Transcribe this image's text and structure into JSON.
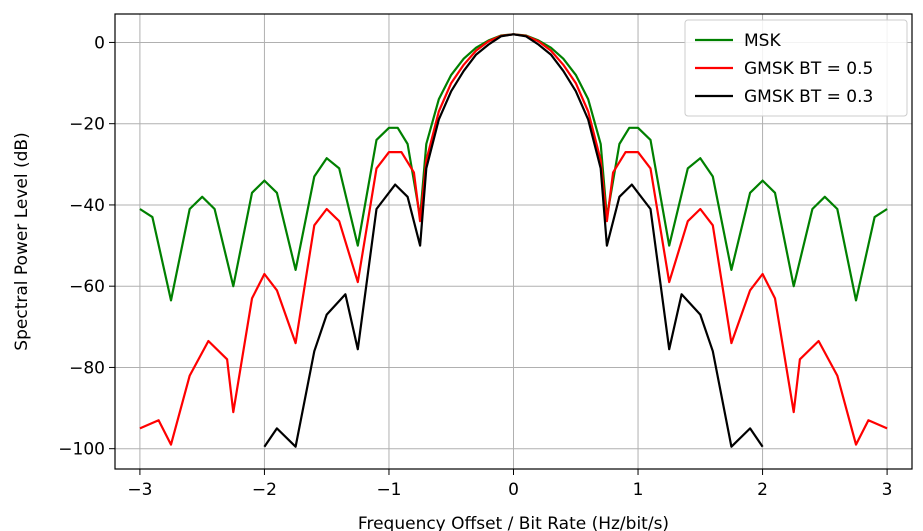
{
  "chart_data": {
    "type": "line",
    "title": "",
    "xlabel": "Frequency Offset / Bit Rate (Hz/bit/s)",
    "ylabel": "Spectral Power Level (dB)",
    "xlim": [
      -3.2,
      3.2
    ],
    "ylim": [
      -105,
      7
    ],
    "xticks": [
      -3,
      -2,
      -1,
      0,
      1,
      2,
      3
    ],
    "xtick_labels": [
      "−3",
      "−2",
      "−1",
      "0",
      "1",
      "2",
      "3"
    ],
    "yticks": [
      0,
      -20,
      -40,
      -60,
      -80,
      -100
    ],
    "ytick_labels": [
      "0",
      "−20",
      "−40",
      "−60",
      "−80",
      "−100"
    ],
    "grid": true,
    "legend_position": "top-right",
    "series": [
      {
        "name": "MSK",
        "color": "#008000",
        "x": [
          -3.0,
          -2.9,
          -2.75,
          -2.6,
          -2.5,
          -2.4,
          -2.25,
          -2.1,
          -2.0,
          -1.9,
          -1.75,
          -1.6,
          -1.5,
          -1.4,
          -1.25,
          -1.1,
          -1.0,
          -0.93,
          -0.85,
          -0.75,
          -0.7,
          -0.6,
          -0.5,
          -0.4,
          -0.3,
          -0.2,
          -0.1,
          0.0,
          0.1,
          0.2,
          0.3,
          0.4,
          0.5,
          0.6,
          0.7,
          0.75,
          0.85,
          0.93,
          1.0,
          1.1,
          1.25,
          1.4,
          1.5,
          1.6,
          1.75,
          1.9,
          2.0,
          2.1,
          2.25,
          2.4,
          2.5,
          2.6,
          2.75,
          2.9,
          3.0
        ],
        "y": [
          -41,
          -43,
          -63.5,
          -41,
          -38,
          -41,
          -60,
          -37,
          -34,
          -37,
          -56,
          -33,
          -28.5,
          -31,
          -50,
          -24,
          -21,
          -21,
          -25,
          -43,
          -25,
          -14,
          -8,
          -4,
          -1.3,
          0.5,
          1.7,
          2,
          1.7,
          0.5,
          -1.3,
          -4,
          -8,
          -14,
          -25,
          -43,
          -25,
          -21,
          -21,
          -24,
          -50,
          -31,
          -28.5,
          -33,
          -56,
          -37,
          -34,
          -37,
          -60,
          -41,
          -38,
          -41,
          -63.5,
          -43,
          -41
        ]
      },
      {
        "name": "GMSK BT = 0.5",
        "color": "#ff0000",
        "x": [
          -3.0,
          -2.85,
          -2.75,
          -2.6,
          -2.45,
          -2.3,
          -2.25,
          -2.1,
          -2.0,
          -1.9,
          -1.75,
          -1.6,
          -1.5,
          -1.4,
          -1.25,
          -1.1,
          -1.0,
          -0.9,
          -0.8,
          -0.75,
          -0.7,
          -0.6,
          -0.5,
          -0.4,
          -0.3,
          -0.2,
          -0.1,
          0.0,
          0.1,
          0.2,
          0.3,
          0.4,
          0.5,
          0.6,
          0.7,
          0.75,
          0.8,
          0.9,
          1.0,
          1.1,
          1.25,
          1.4,
          1.5,
          1.6,
          1.75,
          1.9,
          2.0,
          2.1,
          2.25,
          2.3,
          2.45,
          2.6,
          2.75,
          2.85,
          3.0
        ],
        "y": [
          -95,
          -93,
          -99,
          -82,
          -73.5,
          -78,
          -91,
          -63,
          -57,
          -61,
          -74,
          -45,
          -41,
          -44,
          -59,
          -31,
          -27,
          -27,
          -32,
          -44,
          -29,
          -17,
          -10,
          -5.5,
          -2,
          0.3,
          1.6,
          2,
          1.6,
          0.3,
          -2,
          -5.5,
          -10,
          -17,
          -29,
          -44,
          -32,
          -27,
          -27,
          -31,
          -59,
          -44,
          -41,
          -45,
          -74,
          -61,
          -57,
          -63,
          -91,
          -78,
          -73.5,
          -82,
          -99,
          -93,
          -95
        ]
      },
      {
        "name": "GMSK BT = 0.3",
        "color": "#000000",
        "x": [
          -2.0,
          -1.9,
          -1.75,
          -1.6,
          -1.5,
          -1.35,
          -1.25,
          -1.1,
          -0.95,
          -0.85,
          -0.75,
          -0.7,
          -0.6,
          -0.5,
          -0.4,
          -0.3,
          -0.2,
          -0.1,
          0.0,
          0.1,
          0.2,
          0.3,
          0.4,
          0.5,
          0.6,
          0.7,
          0.75,
          0.85,
          0.95,
          1.1,
          1.25,
          1.35,
          1.5,
          1.6,
          1.75,
          1.9,
          2.0
        ],
        "y": [
          -99.5,
          -95,
          -99.5,
          -76,
          -67,
          -62,
          -75.5,
          -41,
          -35,
          -38,
          -50,
          -31,
          -19,
          -12,
          -7,
          -3,
          -0.5,
          1.5,
          2,
          1.5,
          -0.5,
          -3,
          -7,
          -12,
          -19,
          -31,
          -50,
          -38,
          -35,
          -41,
          -75.5,
          -62,
          -67,
          -76,
          -99.5,
          -95,
          -99.5
        ]
      }
    ]
  }
}
